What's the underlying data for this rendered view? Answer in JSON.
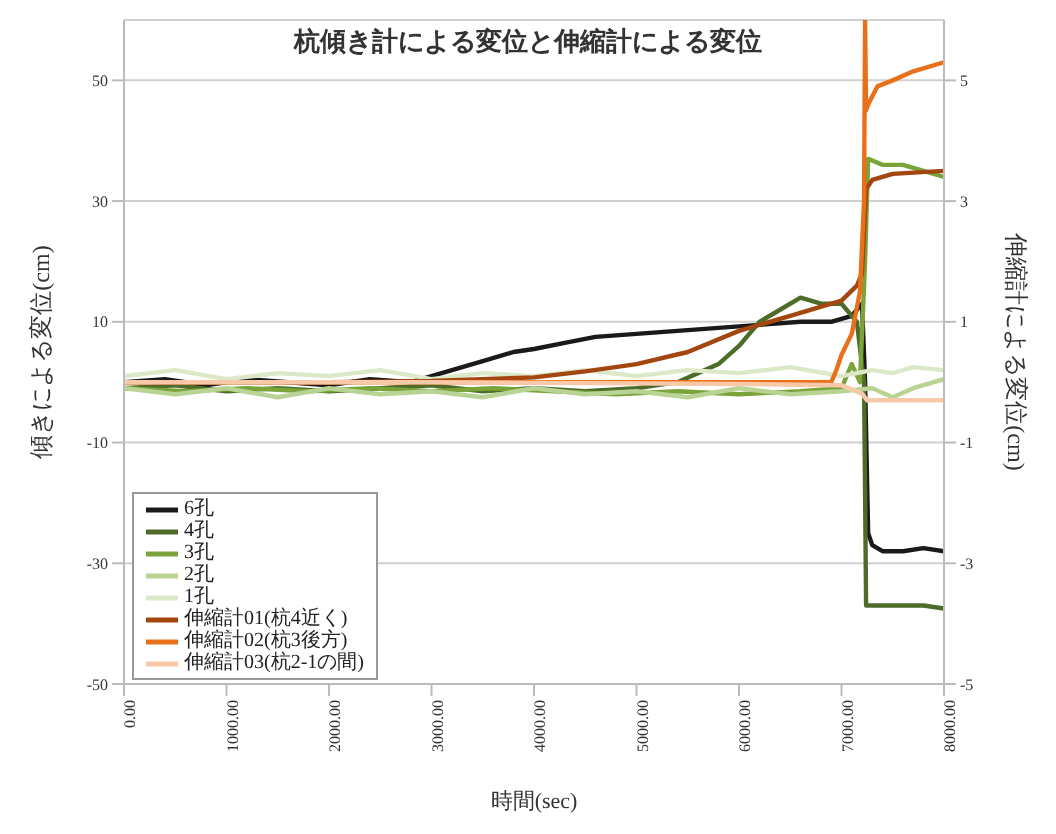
{
  "chart_data": {
    "type": "line",
    "title": "杭傾き計による変位と伸縮計による変位",
    "xlabel": "時間(sec)",
    "ylabel": "傾きによる変位(cm)",
    "y2label": "伸縮計による変位(cm)",
    "xlim": [
      0,
      8000
    ],
    "xticks": [
      {
        "value": 0,
        "label": "0.00"
      },
      {
        "value": 1000,
        "label": "1000.00"
      },
      {
        "value": 2000,
        "label": "2000.00"
      },
      {
        "value": 3000,
        "label": "3000.00"
      },
      {
        "value": 4000,
        "label": "4000.00"
      },
      {
        "value": 5000,
        "label": "5000.00"
      },
      {
        "value": 6000,
        "label": "6000.00"
      },
      {
        "value": 7000,
        "label": "7000.00"
      },
      {
        "value": 8000,
        "label": "8000.00"
      }
    ],
    "ylim": [
      -50,
      60
    ],
    "yticks": [
      -50,
      -30,
      -10,
      10,
      30,
      50
    ],
    "y2lim": [
      -5,
      6
    ],
    "y2ticks": [
      -5,
      -3,
      -1,
      1,
      3,
      5
    ],
    "grid": "y",
    "legend": "bottom left",
    "marker": "none",
    "line_style": "solid",
    "series": [
      {
        "name": "6孔",
        "color": "#1a1a1a",
        "x": [
          0,
          400,
          800,
          1200,
          1600,
          2000,
          2400,
          2800,
          3000,
          3200,
          3500,
          3800,
          4000,
          4300,
          4600,
          5000,
          5400,
          5800,
          6200,
          6600,
          6900,
          7100,
          7200,
          7230,
          7260,
          7300,
          7400,
          7600,
          7800,
          8000
        ],
        "values": [
          0,
          0.5,
          -0.5,
          0.5,
          0,
          -0.5,
          0.5,
          0,
          1,
          2,
          3.5,
          5,
          5.5,
          6.5,
          7.5,
          8,
          8.5,
          9,
          9.5,
          10,
          10,
          11,
          13,
          0,
          -25,
          -27,
          -28,
          -28,
          -27.5,
          -28
        ]
      },
      {
        "name": "4孔",
        "color": "#4f6b2a",
        "x": [
          0,
          500,
          1000,
          1500,
          2000,
          2500,
          3000,
          3500,
          4000,
          4500,
          5000,
          5400,
          5600,
          5800,
          6000,
          6200,
          6400,
          6600,
          6800,
          7000,
          7150,
          7220,
          7240,
          7300,
          7500,
          7800,
          8000
        ],
        "values": [
          -1,
          -0.5,
          -1.5,
          -1,
          -1.5,
          -1,
          -0.5,
          -1.5,
          -1,
          -1.5,
          -1,
          0,
          1.5,
          3,
          6,
          10,
          12,
          14,
          13,
          13,
          10,
          0,
          -37,
          -37,
          -37,
          -37,
          -37.5
        ]
      },
      {
        "name": "3孔",
        "color": "#7aa33a",
        "x": [
          0,
          600,
          1200,
          1800,
          2400,
          3000,
          3600,
          4200,
          4800,
          5400,
          6000,
          6600,
          7000,
          7100,
          7180,
          7230,
          7260,
          7400,
          7600,
          7800,
          8000
        ],
        "values": [
          -1,
          -1.5,
          -1,
          -1.5,
          -1,
          -1.5,
          -1,
          -1.5,
          -2,
          -1.5,
          -2,
          -1.5,
          -1,
          3,
          0,
          20,
          37,
          36,
          36,
          35,
          34
        ]
      },
      {
        "name": "2孔",
        "color": "#b8d394",
        "x": [
          0,
          500,
          1000,
          1500,
          2000,
          2500,
          3000,
          3500,
          4000,
          4500,
          5000,
          5500,
          6000,
          6500,
          7000,
          7300,
          7500,
          7700,
          8000
        ],
        "values": [
          -1,
          -2,
          -1,
          -2.5,
          -1,
          -2,
          -1.5,
          -2.5,
          -1,
          -2,
          -1.5,
          -2.5,
          -1,
          -2,
          -1.5,
          -1,
          -2.5,
          -1,
          0.5
        ]
      },
      {
        "name": "1孔",
        "color": "#dce9c8",
        "x": [
          0,
          500,
          1000,
          1500,
          2000,
          2500,
          3000,
          3500,
          4000,
          4500,
          5000,
          5500,
          6000,
          6500,
          7000,
          7300,
          7500,
          7700,
          8000
        ],
        "values": [
          1,
          2,
          0.5,
          1.5,
          1,
          2,
          0.5,
          1.5,
          1,
          2,
          1,
          2,
          1.5,
          2.5,
          1,
          2,
          1.5,
          2.5,
          2
        ]
      },
      {
        "name": "伸縮計01(杭4近く)",
        "color": "#a3460f",
        "axis": "y2",
        "x": [
          0,
          2000,
          3000,
          4000,
          4500,
          5000,
          5500,
          6000,
          6500,
          7000,
          7150,
          7200,
          7240,
          7300,
          7500,
          8000
        ],
        "values": [
          0,
          0,
          0.02,
          0.08,
          0.18,
          0.3,
          0.5,
          0.85,
          1.1,
          1.35,
          1.6,
          1.8,
          3.2,
          3.35,
          3.45,
          3.5
        ]
      },
      {
        "name": "伸縮計02(杭3後方)",
        "color": "#e8701a",
        "axis": "y2",
        "x": [
          0,
          3000,
          6000,
          6900,
          6950,
          7000,
          7100,
          7180,
          7220,
          7230,
          7240,
          7260,
          7350,
          7500,
          7700,
          8000
        ],
        "values": [
          0,
          0,
          0,
          0,
          0.2,
          0.45,
          0.8,
          1.5,
          3,
          6,
          4.5,
          4.6,
          4.9,
          5,
          5.15,
          5.3
        ]
      },
      {
        "name": "伸縮計03(杭2-1の間)",
        "color": "#f8c9a8",
        "axis": "y2",
        "x": [
          0,
          3000,
          6000,
          7000,
          7200,
          7250,
          8000
        ],
        "values": [
          0,
          0,
          -0.03,
          -0.05,
          -0.19,
          -0.3,
          -0.3
        ]
      }
    ]
  }
}
